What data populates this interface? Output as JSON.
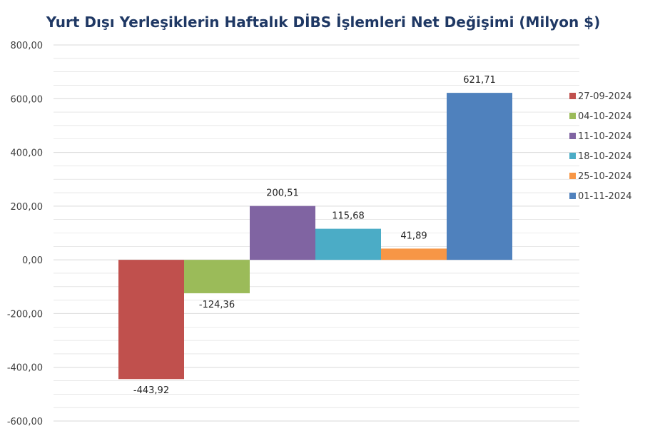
{
  "chart_data": {
    "type": "bar",
    "title": "Yurt Dışı Yerleşiklerin Haftalık DİBS İşlemleri Net Değişimi (Milyon $)",
    "xlabel": "",
    "ylabel": "",
    "ylim": [
      -600,
      800
    ],
    "y_ticks": [
      "800,00",
      "600,00",
      "400,00",
      "200,00",
      "0,00",
      "-200,00",
      "-400,00",
      "-600,00"
    ],
    "y_tick_values": [
      800,
      600,
      400,
      200,
      0,
      -200,
      -400,
      -600
    ],
    "grid": true,
    "legend_position": "right",
    "series": [
      {
        "name": "27-09-2024",
        "value": -443.92,
        "label": "-443,92",
        "color": "#c0504d"
      },
      {
        "name": "04-10-2024",
        "value": -124.36,
        "label": "-124,36",
        "color": "#9bbb59"
      },
      {
        "name": "11-10-2024",
        "value": 200.51,
        "label": "200,51",
        "color": "#8064a2"
      },
      {
        "name": "18-10-2024",
        "value": 115.68,
        "label": "115,68",
        "color": "#4bacc6"
      },
      {
        "name": "25-10-2024",
        "value": 41.89,
        "label": "41,89",
        "color": "#f79646"
      },
      {
        "name": "01-11-2024",
        "value": 621.71,
        "label": "621,71",
        "color": "#4f81bd"
      }
    ]
  },
  "colors": {
    "title": "#1f3864",
    "grid": "#d9d9d9",
    "axis_text": "#404040"
  }
}
